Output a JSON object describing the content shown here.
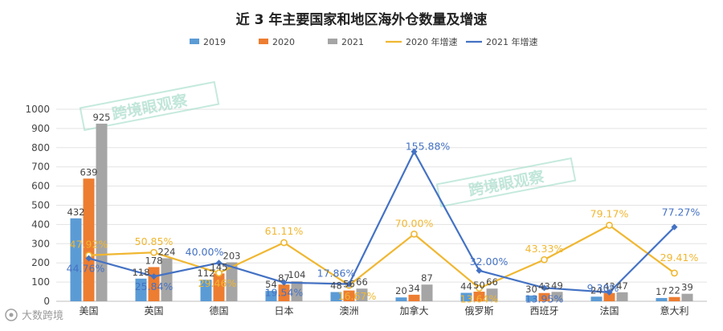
{
  "chart_data": {
    "type": "bar",
    "title": "近 3 年主要国家和地区海外仓数量及增速",
    "categories": [
      "美国",
      "英国",
      "德国",
      "日本",
      "澳洲",
      "加拿大",
      "俄罗斯",
      "西班牙",
      "法国",
      "意大利"
    ],
    "ylim": [
      0,
      1000
    ],
    "yticks": [
      "0",
      "100",
      "200",
      "300",
      "400",
      "500",
      "600",
      "700",
      "800",
      "900",
      "1000"
    ],
    "grid": true,
    "legend_position": "top",
    "series": [
      {
        "name": "2019",
        "kind": "bar",
        "color": "#5b9bd5",
        "values": [
          432,
          118,
          112,
          54,
          48,
          20,
          44,
          30,
          24,
          17
        ],
        "labels": [
          "432",
          "118",
          "112",
          "54",
          "48",
          "20",
          "44",
          "30",
          "24",
          "17"
        ]
      },
      {
        "name": "2020",
        "kind": "bar",
        "color": "#ed7d31",
        "values": [
          639,
          178,
          145,
          87,
          56,
          34,
          50,
          43,
          43,
          22
        ],
        "labels": [
          "639",
          "178",
          "145",
          "87",
          "56",
          "34",
          "50",
          "43",
          "43",
          "22"
        ]
      },
      {
        "name": "2021",
        "kind": "bar",
        "color": "#a5a5a5",
        "values": [
          925,
          224,
          203,
          104,
          66,
          87,
          66,
          49,
          47,
          39
        ],
        "labels": [
          "925",
          "224",
          "203",
          "104",
          "66",
          "87",
          "66",
          "49",
          "47",
          "39"
        ]
      },
      {
        "name": "2020 年增速",
        "kind": "line",
        "color": "#f0b731",
        "marker": "circle",
        "values": [
          47.92,
          50.85,
          29.46,
          61.11,
          16.67,
          70.0,
          13.64,
          43.33,
          79.17,
          29.41
        ],
        "labels": [
          "47.92%",
          "50.85%",
          "29.46%",
          "61.11%",
          "16.67%",
          "70.00%",
          "13.64%",
          "43.33%",
          "79.17%",
          "29.41%"
        ]
      },
      {
        "name": "2021 年增速",
        "kind": "line",
        "color": "#4472c4",
        "marker": "diamond",
        "values": [
          44.76,
          25.84,
          40.0,
          19.54,
          17.86,
          155.88,
          32.0,
          13.95,
          9.3,
          77.27
        ],
        "labels": [
          "44.76%",
          "25.84%",
          "40.00%",
          "19.54%",
          "17.86%",
          "155.88%",
          "32.00%",
          "13.95%",
          "9.30%",
          "77.27%"
        ]
      }
    ]
  },
  "watermark": {
    "text": "跨境眼观察"
  },
  "brand": {
    "text": "大数跨境"
  }
}
